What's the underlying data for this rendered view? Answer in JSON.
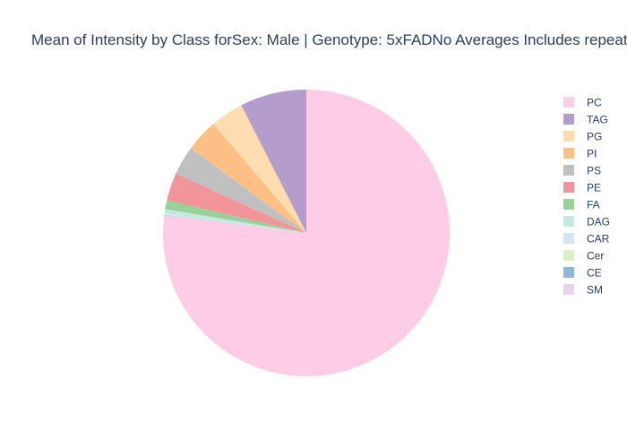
{
  "chart_data": {
    "type": "pie",
    "title": "Mean of Intensity by Class forSex: Male | Genotype: 5xFADNo Averages Includes repeat",
    "direction": "clockwise",
    "start": "top",
    "legend_position": "right",
    "slices": [
      {
        "label": "PC",
        "value": 78.0,
        "color": "#fccde5"
      },
      {
        "label": "SM",
        "value": 0.05,
        "color": "#e6d5ec"
      },
      {
        "label": "CE",
        "value": 0.05,
        "color": "#8fb8d6"
      },
      {
        "label": "Cer",
        "value": 0.05,
        "color": "#d9f2c4"
      },
      {
        "label": "CAR",
        "value": 0.1,
        "color": "#d2e7f1"
      },
      {
        "label": "DAG",
        "value": 0.5,
        "color": "#c4e9de"
      },
      {
        "label": "FA",
        "value": 1.0,
        "color": "#9ad19a"
      },
      {
        "label": "PE",
        "value": 3.2,
        "color": "#f1959a"
      },
      {
        "label": "PS",
        "value": 3.3,
        "color": "#c0c0c0"
      },
      {
        "label": "PI",
        "value": 3.75,
        "color": "#fdbf84"
      },
      {
        "label": "PG",
        "value": 3.8,
        "color": "#fddcb0"
      },
      {
        "label": "TAG",
        "value": 7.6,
        "color": "#b49ccd"
      }
    ],
    "legend_order": [
      "PC",
      "TAG",
      "PG",
      "PI",
      "PS",
      "PE",
      "FA",
      "DAG",
      "CAR",
      "Cer",
      "CE",
      "SM"
    ]
  }
}
